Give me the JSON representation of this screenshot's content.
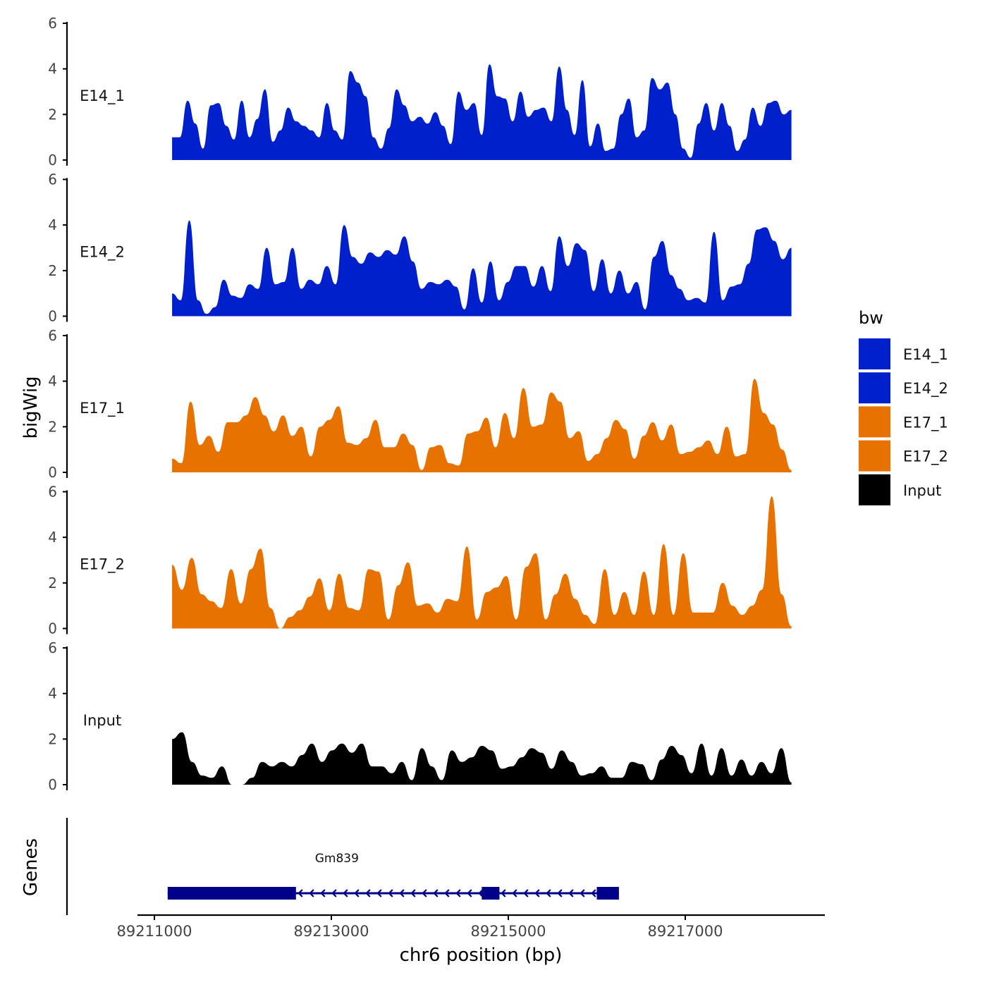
{
  "chart_data": {
    "type": "area",
    "title": "",
    "xlabel": "chr6 position (bp)",
    "ylabel": "bigWig",
    "genes_label": "Genes",
    "xlim": [
      89210000,
      89218800
    ],
    "x_ticks": [
      89211000,
      89213000,
      89215000,
      89217000
    ],
    "x_tick_labels": [
      "89211000",
      "89213000",
      "89215000",
      "89217000"
    ],
    "ylim": [
      0,
      6
    ],
    "y_ticks": [
      0,
      2,
      4,
      6
    ],
    "y_tick_labels": [
      "0",
      "2",
      "4",
      "6"
    ],
    "legend": {
      "title": "bw",
      "position": "right",
      "entries": [
        {
          "name": "E14_1",
          "color": "#0020CC"
        },
        {
          "name": "E14_2",
          "color": "#0020CC"
        },
        {
          "name": "E17_1",
          "color": "#E87200"
        },
        {
          "name": "E17_2",
          "color": "#E87200"
        },
        {
          "name": "Input",
          "color": "#000000"
        }
      ]
    },
    "series": [
      {
        "name": "E14_1",
        "color": "#0020CC",
        "start": 89211200,
        "end": 89218200,
        "values": [
          1.0,
          1.0,
          2.6,
          1.6,
          0.5,
          2.4,
          2.5,
          1.5,
          0.9,
          2.6,
          1.0,
          1.8,
          3.1,
          0.8,
          1.3,
          2.3,
          1.7,
          1.5,
          1.3,
          1.0,
          2.5,
          1.3,
          0.9,
          3.9,
          3.4,
          2.8,
          1.0,
          0.5,
          1.4,
          3.1,
          2.4,
          1.7,
          1.9,
          1.6,
          2.1,
          1.5,
          0.7,
          3.0,
          2.2,
          2.5,
          1.1,
          4.2,
          2.8,
          2.7,
          1.7,
          3.0,
          1.9,
          2.2,
          2.3,
          1.7,
          4.1,
          2.2,
          1.1,
          3.5,
          0.6,
          1.6,
          0.4,
          0.5,
          2.0,
          2.7,
          1.0,
          1.3,
          3.6,
          3.1,
          3.4,
          2.0,
          0.5,
          0.1,
          1.6,
          2.5,
          1.3,
          2.5,
          1.5,
          0.4,
          0.9,
          2.3,
          1.5,
          2.5,
          2.6,
          2.0,
          2.2
        ]
      },
      {
        "name": "E14_2",
        "color": "#0020CC",
        "start": 89211200,
        "end": 89218200,
        "values": [
          1.0,
          0.7,
          4.2,
          0.7,
          0.1,
          0.4,
          1.6,
          0.9,
          0.8,
          1.4,
          1.2,
          3.0,
          1.4,
          1.5,
          3.0,
          1.2,
          1.6,
          1.4,
          2.2,
          1.4,
          4.0,
          2.6,
          2.3,
          2.8,
          2.6,
          2.9,
          2.7,
          3.5,
          2.4,
          1.2,
          1.5,
          1.4,
          1.6,
          1.3,
          0.3,
          2.1,
          0.6,
          2.4,
          0.7,
          1.5,
          2.2,
          2.2,
          1.3,
          2.2,
          1.1,
          3.5,
          2.2,
          3.2,
          2.9,
          1.1,
          2.5,
          1.0,
          2.0,
          1.0,
          1.5,
          0.3,
          2.6,
          3.3,
          1.8,
          1.2,
          0.7,
          0.8,
          0.6,
          3.7,
          0.7,
          1.3,
          1.4,
          2.3,
          3.8,
          3.9,
          3.3,
          2.5,
          3.0
        ]
      },
      {
        "name": "E17_1",
        "color": "#E87200",
        "start": 89211200,
        "end": 89218200,
        "values": [
          0.6,
          0.4,
          3.1,
          1.2,
          1.6,
          0.9,
          2.2,
          2.2,
          2.5,
          3.3,
          2.5,
          1.8,
          2.5,
          1.6,
          2.0,
          0.7,
          2.0,
          2.3,
          2.9,
          1.3,
          1.2,
          1.5,
          2.3,
          1.1,
          1.1,
          1.7,
          1.2,
          0.1,
          1.1,
          1.2,
          0.4,
          0.3,
          1.7,
          1.8,
          2.4,
          1.1,
          2.6,
          1.5,
          3.7,
          2.0,
          2.1,
          3.5,
          3.1,
          1.5,
          1.8,
          0.5,
          0.8,
          1.5,
          2.3,
          1.9,
          0.6,
          1.6,
          2.2,
          1.4,
          2.1,
          0.8,
          0.9,
          1.1,
          1.4,
          0.8,
          2.0,
          0.7,
          0.8,
          4.1,
          2.6,
          2.1,
          1.0,
          0.1
        ]
      },
      {
        "name": "E17_2",
        "color": "#E87200",
        "start": 89211200,
        "end": 89218200,
        "values": [
          2.8,
          1.7,
          3.1,
          1.5,
          1.2,
          0.9,
          2.6,
          1.1,
          2.6,
          3.5,
          0.9,
          0.0,
          0.5,
          0.8,
          1.4,
          2.2,
          0.8,
          2.4,
          0.9,
          0.8,
          2.6,
          2.5,
          0.4,
          1.9,
          2.9,
          1.0,
          1.1,
          0.7,
          1.3,
          1.2,
          3.6,
          0.4,
          1.6,
          1.8,
          2.3,
          0.4,
          2.7,
          3.3,
          0.4,
          1.5,
          2.4,
          1.3,
          0.6,
          0.2,
          2.6,
          0.6,
          1.6,
          0.6,
          2.5,
          0.6,
          3.7,
          0.6,
          3.3,
          0.7,
          0.7,
          0.7,
          2.0,
          1.0,
          0.6,
          1.0,
          1.7,
          5.8,
          1.5,
          0.1
        ]
      },
      {
        "name": "Input",
        "color": "#000000",
        "start": 89211200,
        "end": 89218200,
        "values": [
          2.0,
          2.3,
          1.0,
          0.4,
          0.3,
          0.8,
          0.0,
          0.0,
          0.3,
          1.0,
          0.8,
          1.0,
          0.8,
          1.3,
          1.8,
          1.0,
          1.5,
          1.8,
          1.4,
          1.8,
          0.8,
          0.8,
          0.5,
          1.0,
          0.2,
          1.6,
          0.8,
          0.2,
          1.5,
          1.0,
          1.2,
          1.7,
          1.5,
          0.7,
          0.8,
          1.2,
          1.6,
          1.4,
          0.7,
          1.5,
          1.0,
          0.4,
          0.5,
          0.8,
          0.3,
          0.3,
          1.0,
          0.9,
          0.2,
          1.1,
          1.7,
          1.3,
          0.5,
          1.8,
          0.4,
          1.6,
          0.4,
          1.1,
          0.4,
          1.0,
          0.5,
          1.6,
          0.1
        ]
      }
    ],
    "genes": [
      {
        "name": "Gm839",
        "strand": "-",
        "start": 89211150,
        "end": 89216250,
        "exons": [
          [
            89211150,
            89212600
          ],
          [
            89214700,
            89214900
          ],
          [
            89216000,
            89216250
          ]
        ]
      }
    ]
  }
}
